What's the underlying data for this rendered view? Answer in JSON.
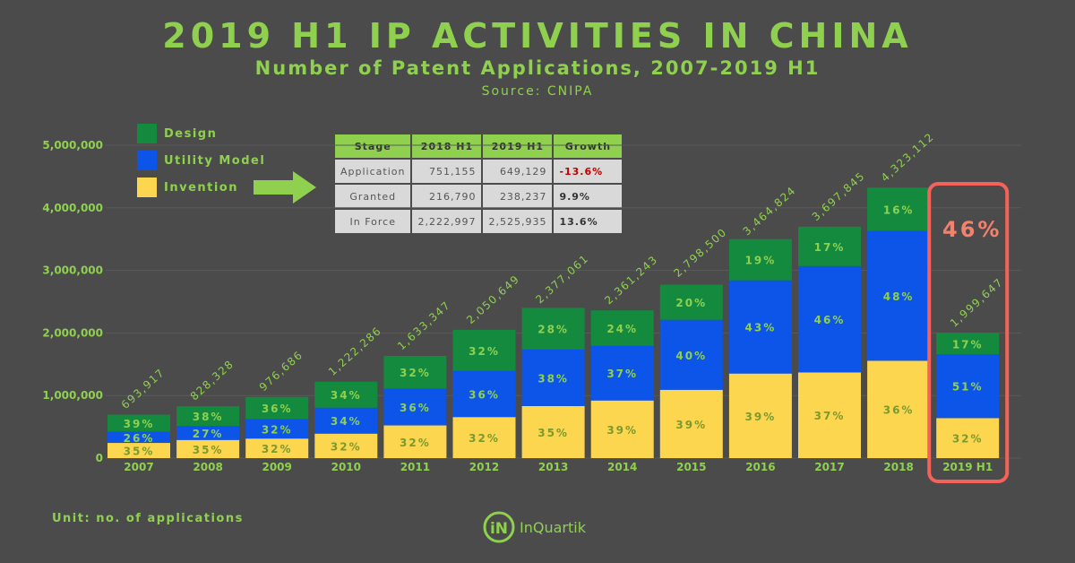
{
  "title": "2019 H1 IP ACTIVITIES IN CHINA",
  "subtitle": "Number of Patent Applications, 2007-2019 H1",
  "source": "Source: CNIPA",
  "unit_note": "Unit: no. of applications",
  "logo_text": "InQuartik",
  "highlight_pct": "46%",
  "legend": [
    {
      "label": "Design",
      "color": "#138a3e"
    },
    {
      "label": "Utility Model",
      "color": "#0d55e8"
    },
    {
      "label": "Invention",
      "color": "#fdd64f"
    }
  ],
  "table": {
    "headers": [
      "Stage",
      "2018 H1",
      "2019 H1",
      "Growth"
    ],
    "rows": [
      [
        "Application",
        "751,155",
        "649,129",
        "-13.6%"
      ],
      [
        "Granted",
        "216,790",
        "238,237",
        "9.9%"
      ],
      [
        "In Force",
        "2,222,997",
        "2,525,935",
        "13.6%"
      ]
    ]
  },
  "colors": {
    "accent": "#8fd14f",
    "design": "#138a3e",
    "utility": "#0d55e8",
    "invention": "#fdd64f",
    "highlight": "#f4625a",
    "background": "#4b4b4b"
  },
  "chart_data": {
    "type": "bar",
    "stacked": true,
    "categories": [
      "2007",
      "2008",
      "2009",
      "2010",
      "2011",
      "2012",
      "2013",
      "2014",
      "2015",
      "2016",
      "2017",
      "2018",
      "2019 H1"
    ],
    "totals": [
      693917,
      828328,
      976686,
      1222286,
      1633347,
      2050649,
      2377061,
      2361243,
      2798500,
      3464824,
      3697845,
      4323112,
      1999647
    ],
    "total_labels": [
      "693,917",
      "828,328",
      "976,686",
      "1,222,286",
      "1,633,347",
      "2,050,649",
      "2,377,061",
      "2,361,243",
      "2,798,500",
      "3,464,824",
      "3,697,845",
      "4,323,112",
      "1,999,647"
    ],
    "series": [
      {
        "name": "Invention",
        "percents": [
          35,
          35,
          32,
          32,
          32,
          32,
          35,
          39,
          39,
          39,
          37,
          36,
          32
        ]
      },
      {
        "name": "Utility Model",
        "percents": [
          26,
          27,
          32,
          34,
          36,
          36,
          38,
          37,
          40,
          43,
          46,
          48,
          51
        ]
      },
      {
        "name": "Design",
        "percents": [
          39,
          38,
          36,
          34,
          32,
          32,
          28,
          24,
          20,
          19,
          17,
          16,
          17
        ]
      }
    ],
    "yticks": [
      "0",
      "1,000,000",
      "2,000,000",
      "3,000,000",
      "4,000,000",
      "5,000,000"
    ],
    "ylim": [
      0,
      5000000
    ],
    "highlight_category": "2019 H1"
  }
}
